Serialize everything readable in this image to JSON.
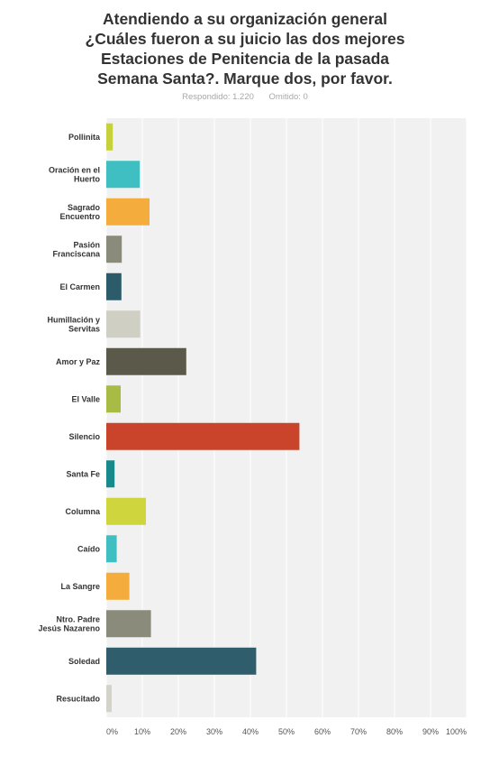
{
  "header": {
    "title_lines": [
      "Atendiendo a su organización general",
      "¿Cuáles fueron a su juicio las dos mejores",
      "Estaciones de Penitencia de la pasada",
      "Semana Santa?. Marque dos, por favor."
    ],
    "answered": "Respondido: 1.220",
    "skipped": "Omitido: 0"
  },
  "chart_data": {
    "type": "bar",
    "orientation": "horizontal",
    "title": "",
    "xlabel": "",
    "ylabel": "",
    "xlim": [
      0,
      100
    ],
    "grid": true,
    "categories": [
      [
        "Pollinita"
      ],
      [
        "Oración en el",
        "Huerto"
      ],
      [
        "Sagrado",
        "Encuentro"
      ],
      [
        "Pasión",
        "Franciscana"
      ],
      [
        "El Carmen"
      ],
      [
        "Humillación y",
        "Servitas"
      ],
      [
        "Amor y Paz"
      ],
      [
        "El Valle"
      ],
      [
        "Silencio"
      ],
      [
        "Santa Fe"
      ],
      [
        "Columna"
      ],
      [
        "Caído"
      ],
      [
        "La Sangre"
      ],
      [
        "Ntro. Padre",
        "Jesús Nazareno"
      ],
      [
        "Soledad"
      ],
      [
        "Resucitado"
      ]
    ],
    "values": [
      1.8,
      9.3,
      12.0,
      4.3,
      4.2,
      9.4,
      22.2,
      4.0,
      53.6,
      2.3,
      11.0,
      2.9,
      6.4,
      12.4,
      41.6,
      1.5
    ],
    "colors": [
      "#c6d13b",
      "#3fbfc1",
      "#f4ac3c",
      "#8b8b7c",
      "#2c5b6a",
      "#cfcfc3",
      "#5b5a4a",
      "#a8bb45",
      "#c9442a",
      "#188a8c",
      "#ced53d",
      "#3fbfc1",
      "#f4ac3c",
      "#8b8b7c",
      "#2f5d6c",
      "#d3d3c9"
    ],
    "ticks": [
      {
        "value": 0,
        "label": "0%"
      },
      {
        "value": 10,
        "label": "10%"
      },
      {
        "value": 20,
        "label": "20%"
      },
      {
        "value": 30,
        "label": "30%"
      },
      {
        "value": 40,
        "label": "40%"
      },
      {
        "value": 50,
        "label": "50%"
      },
      {
        "value": 60,
        "label": "60%"
      },
      {
        "value": 70,
        "label": "70%"
      },
      {
        "value": 80,
        "label": "80%"
      },
      {
        "value": 90,
        "label": "90%"
      },
      {
        "value": 100,
        "label": "100%"
      }
    ],
    "plot_background": "#f1f1f1",
    "grid_color": "#ffffff"
  }
}
